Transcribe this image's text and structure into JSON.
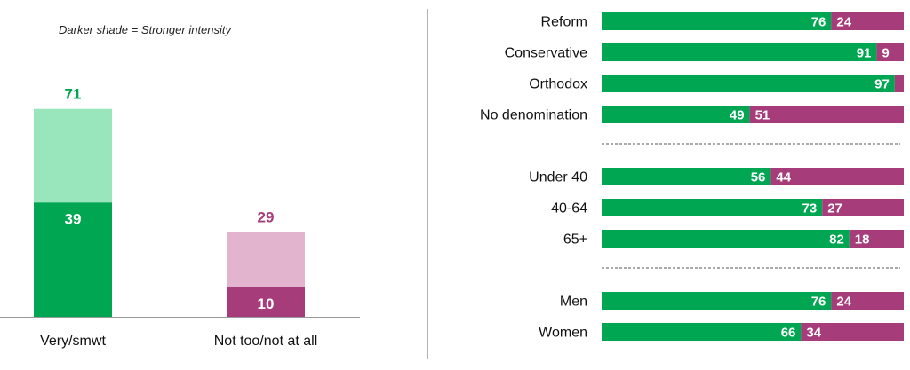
{
  "note": "Darker shade = Stronger intensity",
  "colors": {
    "positive": "#00a651",
    "positive_light": "#99e6bd",
    "negative": "#a63d7a",
    "negative_light": "#e2b4cd",
    "positive_label": "#00a651",
    "negative_label": "#a63d7a"
  },
  "chart_data": [
    {
      "type": "bar",
      "stacked": true,
      "categories": [
        "Very/smwt",
        "Not too/not at all"
      ],
      "series": [
        {
          "values": [
            39,
            10
          ]
        },
        {
          "values": [
            32,
            19
          ]
        }
      ],
      "totals": [
        71,
        29
      ],
      "ylim": [
        0,
        100
      ]
    },
    {
      "type": "bar",
      "orientation": "horizontal",
      "stacked": true,
      "groups": [
        {
          "rows": [
            {
              "label": "Reform",
              "values": [
                76,
                24
              ]
            },
            {
              "label": "Conservative",
              "values": [
                91,
                9
              ]
            },
            {
              "label": "Orthodox",
              "values": [
                97,
                3
              ]
            },
            {
              "label": "No denomination",
              "values": [
                49,
                51
              ]
            }
          ]
        },
        {
          "rows": [
            {
              "label": "Under 40",
              "values": [
                56,
                44
              ]
            },
            {
              "label": "40-64",
              "values": [
                73,
                27
              ]
            },
            {
              "label": "65+",
              "values": [
                82,
                18
              ]
            }
          ]
        },
        {
          "rows": [
            {
              "label": "Men",
              "values": [
                76,
                24
              ]
            },
            {
              "label": "Women",
              "values": [
                66,
                34
              ]
            }
          ]
        }
      ],
      "xlim": [
        0,
        100
      ]
    }
  ]
}
